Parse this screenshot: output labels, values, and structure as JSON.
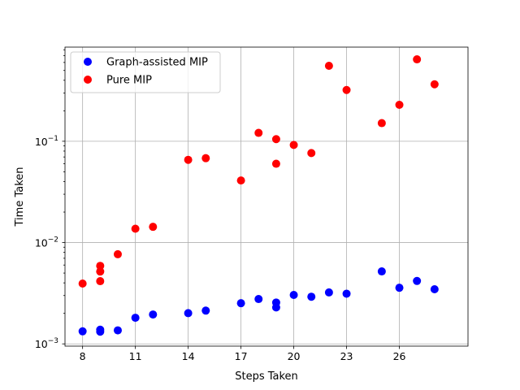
{
  "chart_data": {
    "type": "scatter",
    "title": "",
    "xlabel": "Steps Taken",
    "ylabel": "Time Taken",
    "xscale": "linear",
    "yscale": "log",
    "xlim": [
      7,
      29.9
    ],
    "ylim": [
      0.00095,
      0.85
    ],
    "xticks": [
      8,
      11,
      14,
      17,
      20,
      23,
      26
    ],
    "xtick_labels": [
      "8",
      "11",
      "14",
      "17",
      "20",
      "23",
      "26"
    ],
    "yticks": [
      0.001,
      0.01,
      0.1
    ],
    "ytick_labels": [
      {
        "base": "10",
        "exp": "−3"
      },
      {
        "base": "10",
        "exp": "−2"
      },
      {
        "base": "10",
        "exp": "−1"
      }
    ],
    "grid": true,
    "legend_position": "upper-left",
    "series": [
      {
        "name": "Graph-assisted MIP",
        "color": "#0000ff",
        "points": [
          [
            8,
            0.00133
          ],
          [
            9,
            0.00138
          ],
          [
            9,
            0.00132
          ],
          [
            10,
            0.00136
          ],
          [
            11,
            0.00181
          ],
          [
            12,
            0.00195
          ],
          [
            14,
            0.00201
          ],
          [
            15,
            0.00213
          ],
          [
            17,
            0.00252
          ],
          [
            18,
            0.00277
          ],
          [
            19,
            0.00256
          ],
          [
            19,
            0.00229
          ],
          [
            20,
            0.00304
          ],
          [
            21,
            0.00292
          ],
          [
            22,
            0.00322
          ],
          [
            23,
            0.00313
          ],
          [
            25,
            0.00519
          ],
          [
            26,
            0.00358
          ],
          [
            27,
            0.00418
          ],
          [
            28,
            0.00346
          ]
        ]
      },
      {
        "name": "Pure MIP",
        "color": "#ff0000",
        "points": [
          [
            8,
            0.00394
          ],
          [
            9,
            0.00589
          ],
          [
            9,
            0.00518
          ],
          [
            9,
            0.00416
          ],
          [
            10,
            0.00767
          ],
          [
            11,
            0.0137
          ],
          [
            12,
            0.0143
          ],
          [
            14,
            0.0656
          ],
          [
            15,
            0.0681
          ],
          [
            17,
            0.041
          ],
          [
            18,
            0.121
          ],
          [
            19,
            0.105
          ],
          [
            19,
            0.06
          ],
          [
            20,
            0.092
          ],
          [
            21,
            0.0765
          ],
          [
            22,
            0.556
          ],
          [
            23,
            0.321
          ],
          [
            25,
            0.151
          ],
          [
            26,
            0.229
          ],
          [
            27,
            0.644
          ],
          [
            28,
            0.365
          ]
        ]
      }
    ]
  }
}
